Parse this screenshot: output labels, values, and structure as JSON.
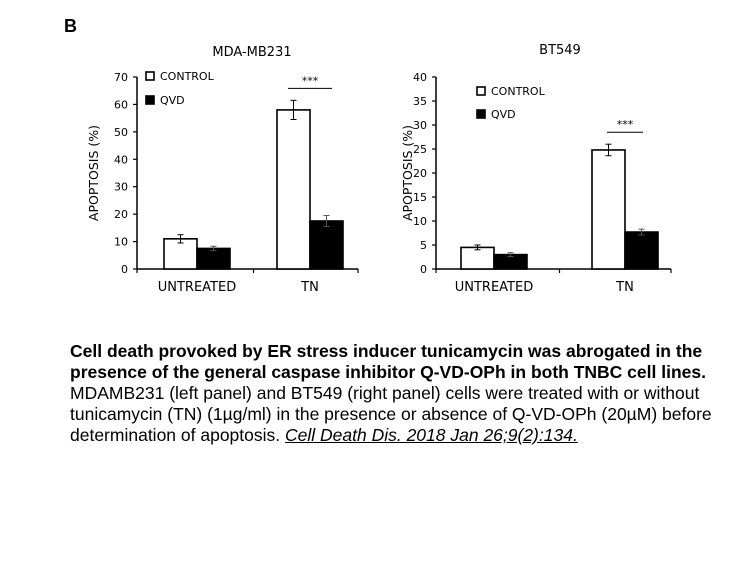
{
  "panel_label": "B",
  "chart_data": [
    {
      "type": "bar",
      "title": "MDA-MB231",
      "ylabel": "APOPTOSIS (%)",
      "xlabel": "",
      "categories": [
        "UNTREATED",
        "TN"
      ],
      "series": [
        {
          "name": "CONTROL",
          "values": [
            11,
            58
          ],
          "errors": [
            1.5,
            3.5
          ],
          "fill": "#ffffff"
        },
        {
          "name": "QVD",
          "values": [
            7.5,
            17.5
          ],
          "errors": [
            0.8,
            2.0
          ],
          "fill": "#000000"
        }
      ],
      "ylim": [
        0,
        70
      ],
      "yticks": [
        0,
        10,
        20,
        30,
        40,
        50,
        60,
        70
      ],
      "grid": false,
      "legend_position": "top-left",
      "annotation": "***",
      "annotation_category": "TN"
    },
    {
      "type": "bar",
      "title": "BT549",
      "ylabel": "APOPTOSIS (%)",
      "xlabel": "",
      "categories": [
        "UNTREATED",
        "TN"
      ],
      "series": [
        {
          "name": "CONTROL",
          "values": [
            4.5,
            24.8
          ],
          "errors": [
            0.5,
            1.2
          ],
          "fill": "#ffffff"
        },
        {
          "name": "QVD",
          "values": [
            3,
            7.7
          ],
          "errors": [
            0.4,
            0.6
          ],
          "fill": "#000000"
        }
      ],
      "ylim": [
        0,
        40
      ],
      "yticks": [
        0,
        5,
        10,
        15,
        20,
        25,
        30,
        35,
        40
      ],
      "grid": false,
      "legend_position": "top-left",
      "annotation": "***",
      "annotation_category": "TN"
    }
  ],
  "caption": {
    "bold": "Cell death provoked by ER stress inducer tunicamycin was abrogated in the presence of the general caspase inhibitor Q-VD-OPh in both TNBC cell lines.",
    "body": "MDAMB231 (left panel) and BT549 (right panel) cells were treated with or without tunicamycin (TN) (1µg/ml) in the presence or absence of Q-VD-OPh (20µM) before determination of apoptosis. ",
    "citation": "Cell Death Dis. 2018 Jan 26;9(2):134."
  }
}
